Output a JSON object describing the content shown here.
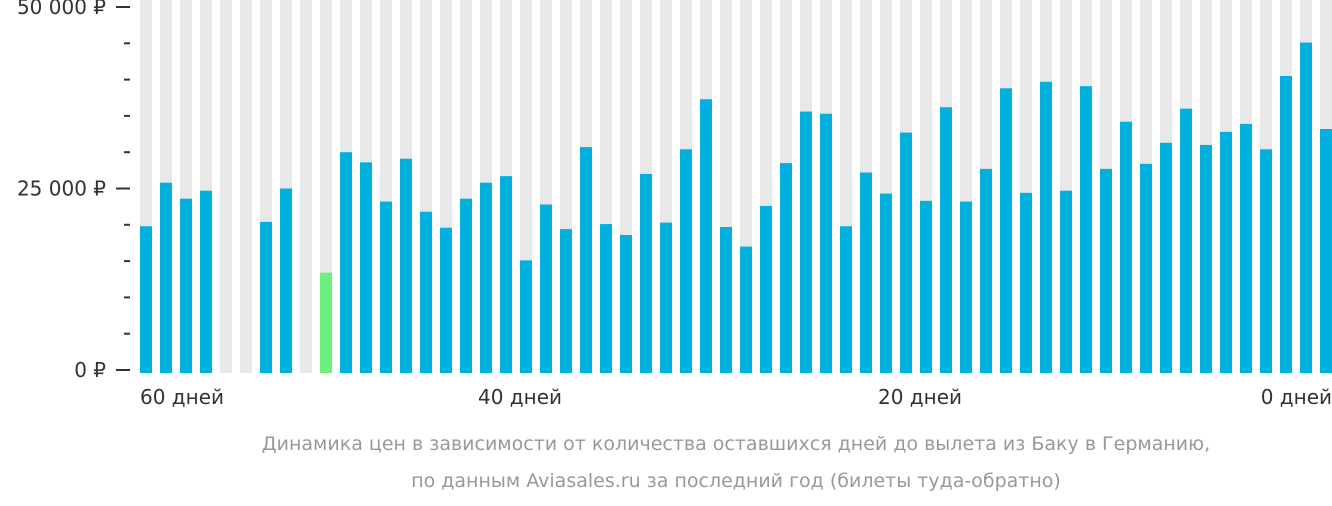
{
  "chart_data": {
    "type": "bar",
    "caption": [
      "Динамика цен в зависимости от количества оставшихся дней до вылета из Баку в Германию,",
      "по данным Aviasales.ru за последний год (билеты туда-обратно)"
    ],
    "categories": [
      "60 дней",
      null,
      null,
      null,
      null,
      null,
      null,
      null,
      null,
      null,
      null,
      null,
      null,
      null,
      null,
      null,
      null,
      null,
      null,
      "40 дней",
      null,
      null,
      null,
      null,
      null,
      null,
      null,
      null,
      null,
      null,
      null,
      null,
      null,
      null,
      null,
      null,
      null,
      null,
      null,
      "20 дней",
      null,
      null,
      null,
      null,
      null,
      null,
      null,
      null,
      null,
      null,
      null,
      null,
      null,
      null,
      null,
      null,
      null,
      null,
      null,
      "0 дней"
    ],
    "values": [
      19800,
      25800,
      23600,
      24700,
      null,
      null,
      20400,
      25000,
      null,
      13400,
      30000,
      28600,
      23200,
      29100,
      21800,
      19600,
      23600,
      25800,
      26700,
      15100,
      22800,
      19400,
      30700,
      20100,
      18600,
      27000,
      20300,
      30400,
      37300,
      19700,
      17000,
      22600,
      28500,
      35600,
      35300,
      19800,
      27200,
      24300,
      32700,
      23300,
      36200,
      23200,
      27700,
      38800,
      24400,
      39700,
      24700,
      39100,
      27700,
      34200,
      28400,
      31300,
      36000,
      31000,
      32800,
      33900,
      30400,
      40500,
      45100,
      33200
    ],
    "color": "#00b0de",
    "highlight_color": "#6ef07c",
    "highlight_index": 9,
    "background_color": "#e8e8e8",
    "ylim": [
      0,
      50000
    ],
    "yticks": [
      {
        "value": 0,
        "label": "0 ₽"
      },
      {
        "value": 25000,
        "label": "25 000 ₽"
      },
      {
        "value": 50000,
        "label": "50 000 ₽"
      }
    ],
    "minor_yticks": [
      5000,
      10000,
      15000,
      20000,
      30000,
      35000,
      40000,
      45000
    ]
  }
}
